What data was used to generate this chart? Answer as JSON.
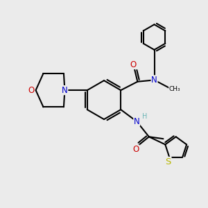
{
  "bg_color": "#ebebeb",
  "atom_colors": {
    "C": "#000000",
    "N": "#0000cc",
    "O": "#cc0000",
    "S": "#b8b800",
    "H": "#6ab5b5"
  },
  "bond_color": "#000000",
  "bond_width": 1.5,
  "font_size_atom": 8.5,
  "font_size_label": 7.5
}
